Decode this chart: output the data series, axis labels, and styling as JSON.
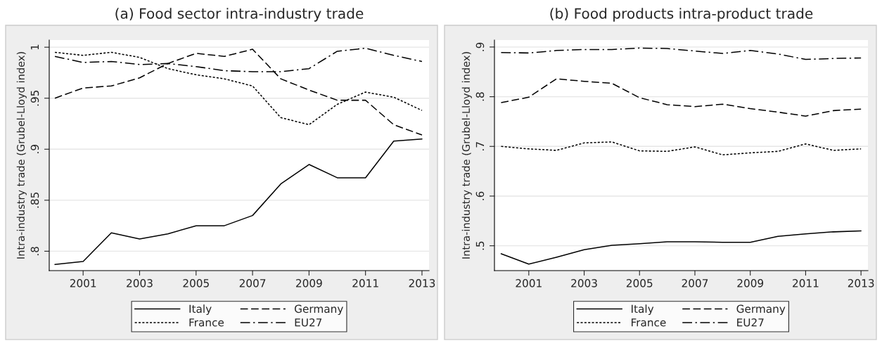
{
  "chart_data": [
    {
      "type": "line",
      "title": "(a) Food sector intra-industry trade",
      "ylabel": "Intra-industry trade (Grubel-Lloyd index)",
      "x": [
        2000,
        2001,
        2002,
        2003,
        2004,
        2005,
        2006,
        2007,
        2008,
        2009,
        2010,
        2011,
        2012,
        2013
      ],
      "series": [
        {
          "name": "Italy",
          "color": "#000000",
          "line_style": "solid",
          "values": [
            0.787,
            0.79,
            0.818,
            0.812,
            0.817,
            0.825,
            0.825,
            0.835,
            0.866,
            0.885,
            0.872,
            0.872,
            0.908,
            0.91
          ]
        },
        {
          "name": "Germany",
          "color": "#000000",
          "line_style": "dashed",
          "values": [
            0.95,
            0.96,
            0.962,
            0.97,
            0.984,
            0.994,
            0.991,
            0.998,
            0.969,
            0.958,
            0.948,
            0.948,
            0.924,
            0.914
          ]
        },
        {
          "name": "France",
          "color": "#000000",
          "line_style": "dotted",
          "values": [
            0.995,
            0.992,
            0.995,
            0.99,
            0.979,
            0.973,
            0.969,
            0.962,
            0.931,
            0.924,
            0.944,
            0.956,
            0.951,
            0.938
          ]
        },
        {
          "name": "EU27",
          "color": "#000000",
          "line_style": "dashdot",
          "values": [
            0.991,
            0.985,
            0.986,
            0.983,
            0.984,
            0.981,
            0.977,
            0.976,
            0.976,
            0.979,
            0.996,
            0.999,
            0.992,
            0.986
          ]
        }
      ],
      "xlim": [
        1999.8,
        2013.25
      ],
      "xticks": [
        2001,
        2003,
        2005,
        2007,
        2009,
        2011,
        2013
      ],
      "ylim": [
        0.781,
        1.007
      ],
      "yticks": [
        {
          "value": 0.8,
          "label": ".8"
        },
        {
          "value": 0.85,
          "label": ".85"
        },
        {
          "value": 0.9,
          "label": ".9"
        },
        {
          "value": 0.95,
          "label": ".95"
        },
        {
          "value": 1,
          "label": "1"
        }
      ],
      "grid": "y",
      "legend": "bottom"
    },
    {
      "type": "line",
      "title": "(b) Food products intra-product trade",
      "ylabel": "Intra-industry trade (Grubel-Lloyd index)",
      "x": [
        2000,
        2001,
        2002,
        2003,
        2004,
        2005,
        2006,
        2007,
        2008,
        2009,
        2010,
        2011,
        2012,
        2013
      ],
      "series": [
        {
          "name": "Italy",
          "color": "#000000",
          "line_style": "solid",
          "values": [
            0.484,
            0.463,
            0.477,
            0.492,
            0.501,
            0.504,
            0.508,
            0.508,
            0.507,
            0.507,
            0.519,
            0.524,
            0.528,
            0.53
          ]
        },
        {
          "name": "Germany",
          "color": "#000000",
          "line_style": "dashed",
          "values": [
            0.788,
            0.799,
            0.836,
            0.831,
            0.827,
            0.798,
            0.784,
            0.78,
            0.785,
            0.776,
            0.769,
            0.761,
            0.772,
            0.775
          ]
        },
        {
          "name": "France",
          "color": "#000000",
          "line_style": "dotted",
          "values": [
            0.7,
            0.695,
            0.692,
            0.707,
            0.709,
            0.691,
            0.69,
            0.699,
            0.683,
            0.687,
            0.69,
            0.705,
            0.692,
            0.695
          ]
        },
        {
          "name": "EU27",
          "color": "#000000",
          "line_style": "dashdot",
          "values": [
            0.889,
            0.888,
            0.893,
            0.895,
            0.895,
            0.898,
            0.897,
            0.892,
            0.887,
            0.893,
            0.886,
            0.875,
            0.877,
            0.878
          ]
        }
      ],
      "xlim": [
        1999.76,
        2013.25
      ],
      "xticks": [
        2001,
        2003,
        2005,
        2007,
        2009,
        2011,
        2013
      ],
      "ylim": [
        0.45,
        0.914
      ],
      "yticks": [
        {
          "value": 0.5,
          "label": ".5"
        },
        {
          "value": 0.6,
          "label": ".6"
        },
        {
          "value": 0.7,
          "label": ".7"
        },
        {
          "value": 0.8,
          "label": ".8"
        },
        {
          "value": 0.9,
          "label": ".9"
        }
      ],
      "grid": "y",
      "legend": "bottom"
    }
  ]
}
